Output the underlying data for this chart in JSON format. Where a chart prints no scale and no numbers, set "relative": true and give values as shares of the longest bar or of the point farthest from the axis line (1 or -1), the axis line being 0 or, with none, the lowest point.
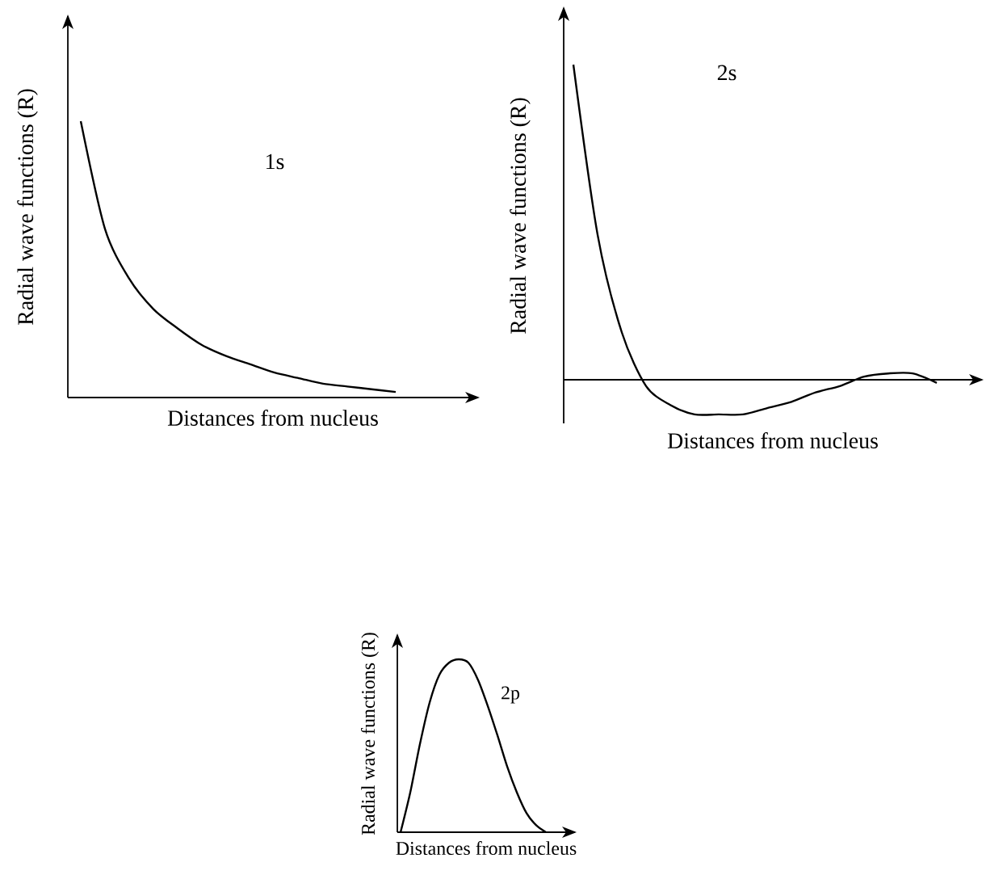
{
  "chart_data": [
    {
      "type": "line",
      "relative": true,
      "xlabel": "Distances from nucleus",
      "ylabel": "Radial wave functions (R)",
      "categories": [
        null,
        null,
        null,
        null,
        null,
        null,
        null,
        null,
        null,
        null,
        null,
        null,
        null,
        null
      ],
      "series": [
        {
          "name": "1s",
          "color": "#000000",
          "values": [
            1,
            0.61,
            0.43,
            0.32,
            0.25,
            0.19,
            0.15,
            0.12,
            0.09,
            0.07,
            0.05,
            0.04,
            0.03,
            0.02
          ]
        }
      ]
    },
    {
      "type": "line",
      "relative": true,
      "xlabel": "Distances from nucleus",
      "ylabel": "Radial wave functions (R)",
      "categories": [
        null,
        null,
        null,
        null,
        null,
        null,
        null,
        null,
        null,
        null,
        null,
        null,
        null,
        null,
        null,
        null
      ],
      "series": [
        {
          "name": "2s",
          "color": "#000000",
          "values": [
            1,
            0.46,
            0.15,
            -0.02,
            -0.08,
            -0.11,
            -0.11,
            -0.11,
            -0.09,
            -0.07,
            -0.04,
            -0.02,
            0.01,
            0.02,
            0.02,
            -0.01
          ]
        }
      ]
    },
    {
      "type": "line",
      "relative": true,
      "xlabel": "Distances from nucleus",
      "ylabel": "Radial wave functions (R)",
      "categories": [
        null,
        null,
        null,
        null,
        null,
        null,
        null,
        null,
        null,
        null,
        null,
        null,
        null,
        null,
        null,
        null
      ],
      "series": [
        {
          "name": "2p",
          "color": "#000000",
          "values": [
            0,
            0.23,
            0.51,
            0.75,
            0.91,
            0.98,
            1,
            0.98,
            0.88,
            0.73,
            0.56,
            0.38,
            0.23,
            0.11,
            0.04,
            0
          ]
        }
      ]
    }
  ]
}
